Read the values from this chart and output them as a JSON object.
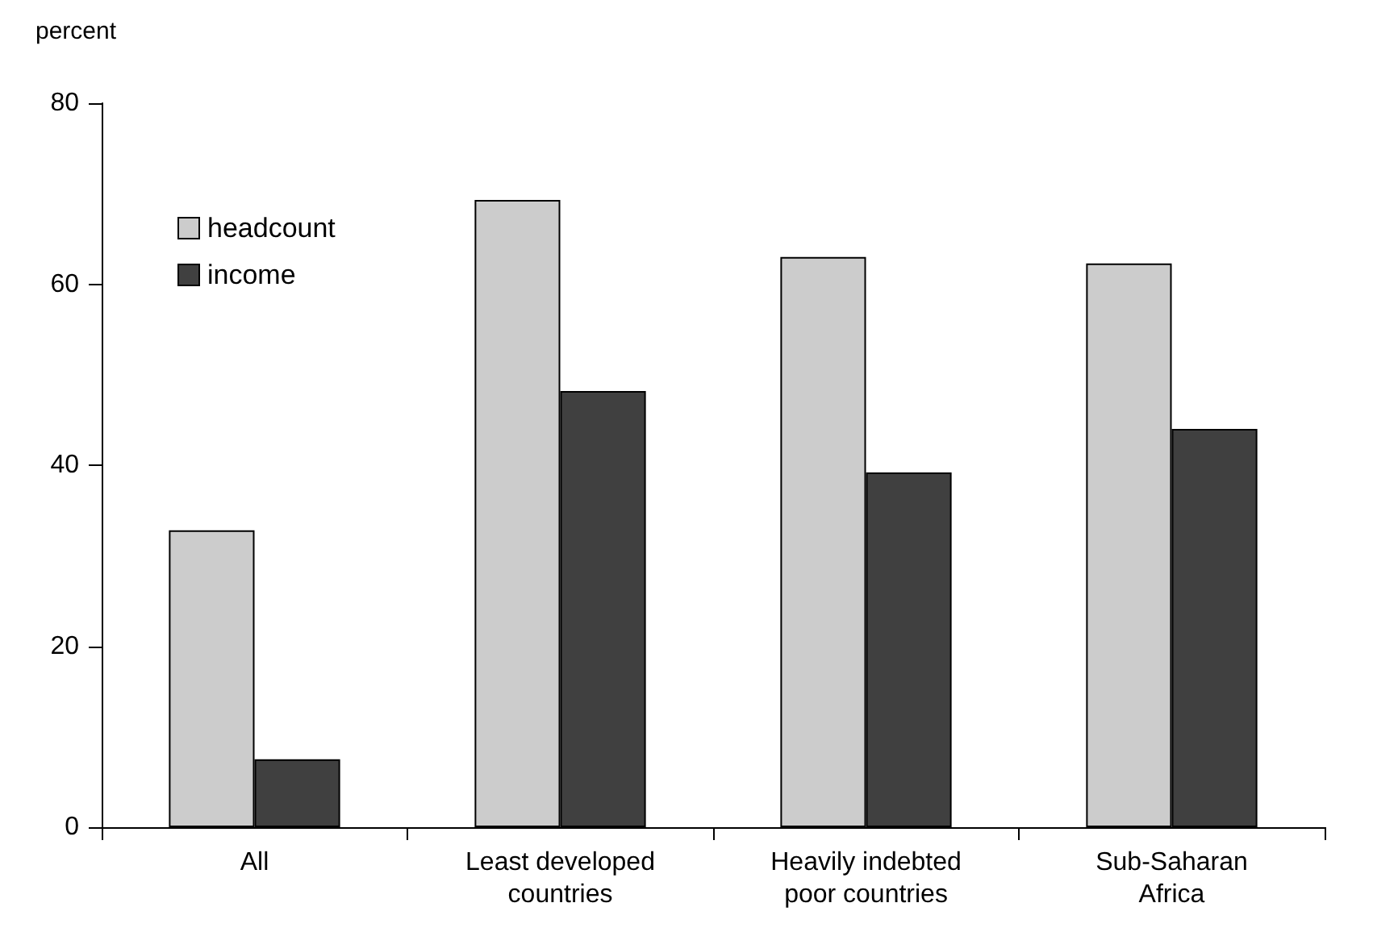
{
  "chart_data": {
    "type": "bar",
    "ylabel": "percent",
    "categories": [
      "All",
      "Least developed\ncountries",
      "Heavily indebted\npoor countries",
      "Sub-Saharan\nAfrica"
    ],
    "series": [
      {
        "name": "headcount",
        "color": "#cccccc",
        "values": [
          32.8,
          69.3,
          63,
          62.3
        ]
      },
      {
        "name": "income",
        "color": "#404040",
        "values": [
          7.5,
          48.2,
          39.2,
          44
        ]
      }
    ],
    "ylim": [
      0,
      80
    ],
    "yticks": [
      0,
      20,
      40,
      60,
      80
    ],
    "grid": false,
    "legend": "top left"
  }
}
